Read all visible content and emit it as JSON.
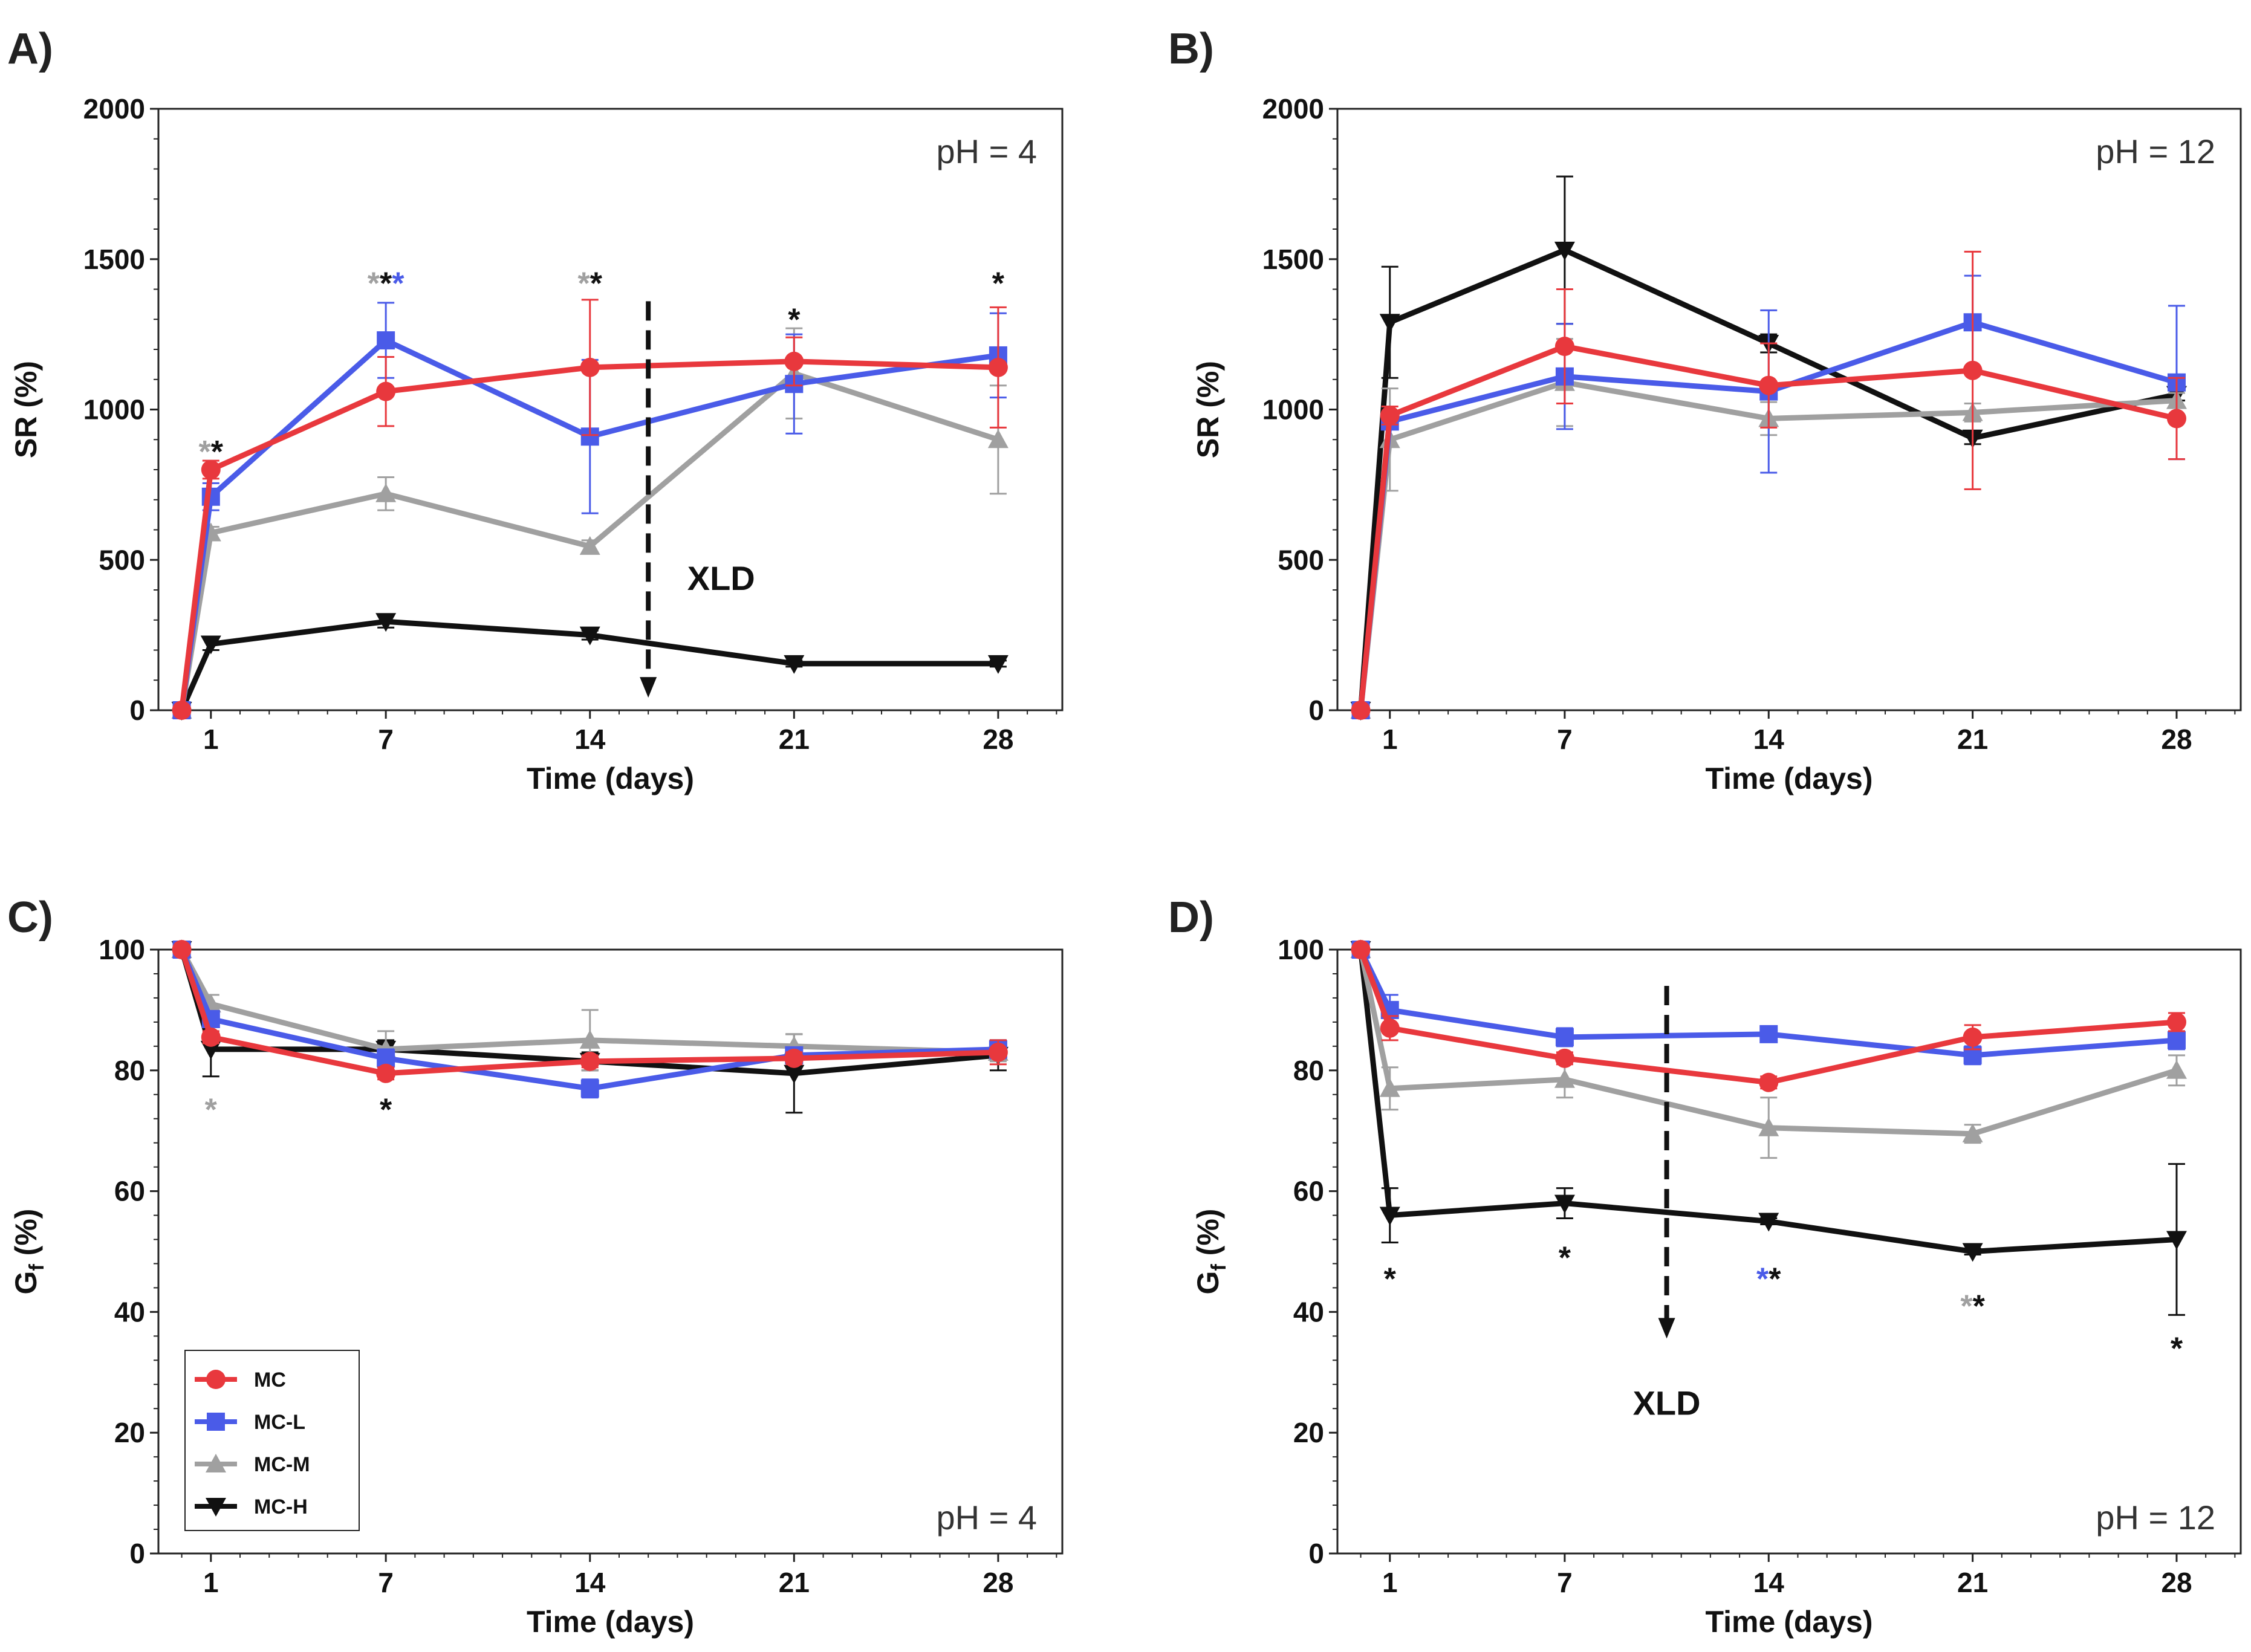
{
  "colors": {
    "MC": "#e8383d",
    "MC-L": "#4a5be8",
    "MC-M": "#a0a0a0",
    "MC-H": "#111111"
  },
  "chart_data": [
    {
      "id": "A",
      "panel": "A)",
      "type": "line",
      "condition": "pH = 4",
      "xlabel": "Time (days)",
      "ylabel": "SR (%)",
      "ylim": [
        0,
        2000
      ],
      "yticks": [
        0,
        500,
        1000,
        1500,
        2000
      ],
      "x": [
        0,
        1,
        7,
        14,
        21,
        28
      ],
      "xticks": [
        1,
        7,
        14,
        21,
        28
      ],
      "series": [
        {
          "name": "MC",
          "values": [
            0,
            800,
            1060,
            1140,
            1160,
            1140
          ],
          "errors": [
            0,
            30,
            115,
            225,
            80,
            200
          ]
        },
        {
          "name": "MC-L",
          "values": [
            0,
            710,
            1230,
            910,
            1085,
            1180
          ],
          "errors": [
            0,
            45,
            125,
            255,
            165,
            140
          ]
        },
        {
          "name": "MC-M",
          "values": [
            0,
            590,
            720,
            545,
            1120,
            900
          ],
          "errors": [
            0,
            20,
            55,
            20,
            150,
            180
          ]
        },
        {
          "name": "MC-H",
          "values": [
            0,
            220,
            295,
            250,
            155,
            155
          ],
          "errors": [
            0,
            20,
            20,
            15,
            10,
            10
          ]
        }
      ],
      "annotations": [
        {
          "x": 1,
          "y": 860,
          "marks": [
            {
              "text": "*",
              "color": "MC-M"
            },
            {
              "text": "*",
              "color": "MC-H"
            }
          ]
        },
        {
          "x": 7,
          "y": 1420,
          "marks": [
            {
              "text": "*",
              "color": "MC-M"
            },
            {
              "text": "*",
              "color": "MC-H"
            },
            {
              "text": "*",
              "color": "MC-L"
            }
          ]
        },
        {
          "x": 14,
          "y": 1420,
          "marks": [
            {
              "text": "*",
              "color": "MC-M"
            },
            {
              "text": "*",
              "color": "MC-H"
            }
          ]
        },
        {
          "x": 21,
          "y": 1300,
          "marks": [
            {
              "text": "*",
              "color": "MC-H"
            }
          ]
        },
        {
          "x": 28,
          "y": 1420,
          "marks": [
            {
              "text": "*",
              "color": "MC-H"
            }
          ]
        }
      ],
      "crosslink": {
        "label": "XLD",
        "x": 16,
        "y_top": 1360,
        "y_bottom": 50,
        "label_x": 18.5,
        "label_y": 440
      }
    },
    {
      "id": "B",
      "panel": "B)",
      "type": "line",
      "condition": "pH = 12",
      "xlabel": "Time (days)",
      "ylabel": "SR (%)",
      "ylim": [
        0,
        2000
      ],
      "yticks": [
        0,
        500,
        1000,
        1500,
        2000
      ],
      "x": [
        0,
        1,
        7,
        14,
        21,
        28
      ],
      "xticks": [
        1,
        7,
        14,
        21,
        28
      ],
      "series": [
        {
          "name": "MC",
          "values": [
            0,
            980,
            1210,
            1080,
            1130,
            970
          ],
          "errors": [
            0,
            30,
            190,
            140,
            395,
            135
          ]
        },
        {
          "name": "MC-L",
          "values": [
            0,
            960,
            1110,
            1060,
            1290,
            1090
          ],
          "errors": [
            0,
            25,
            175,
            270,
            155,
            255
          ]
        },
        {
          "name": "MC-M",
          "values": [
            0,
            900,
            1090,
            970,
            990,
            1030
          ],
          "errors": [
            0,
            170,
            145,
            55,
            30,
            25
          ]
        },
        {
          "name": "MC-H",
          "values": [
            0,
            1290,
            1530,
            1220,
            905,
            1050
          ],
          "errors": [
            0,
            185,
            245,
            30,
            20,
            20
          ]
        }
      ],
      "annotations": [],
      "crosslink": null
    },
    {
      "id": "C",
      "panel": "C)",
      "type": "line",
      "condition": "pH = 4",
      "xlabel": "Time (days)",
      "ylabel": "Gf (%)",
      "ylim": [
        0,
        100
      ],
      "yticks": [
        0,
        20,
        40,
        60,
        80,
        100
      ],
      "x": [
        0,
        1,
        7,
        14,
        21,
        28
      ],
      "xticks": [
        1,
        7,
        14,
        21,
        28
      ],
      "series": [
        {
          "name": "MC",
          "values": [
            100,
            85.5,
            79.5,
            81.5,
            82.0,
            83.0
          ],
          "errors": [
            0,
            1.0,
            1.0,
            1.0,
            1.0,
            2.0
          ]
        },
        {
          "name": "MC-L",
          "values": [
            100,
            88.5,
            82.0,
            77.0,
            82.5,
            83.5
          ],
          "errors": [
            0,
            1.0,
            1.5,
            1.5,
            1.0,
            1.5
          ]
        },
        {
          "name": "MC-M",
          "values": [
            100,
            91.0,
            83.5,
            85.0,
            84.0,
            83.0
          ],
          "errors": [
            0,
            1.5,
            3.0,
            5.0,
            2.0,
            1.5
          ]
        },
        {
          "name": "MC-H",
          "values": [
            100,
            83.5,
            83.5,
            81.5,
            79.5,
            82.5
          ],
          "errors": [
            0,
            4.5,
            1.5,
            1.5,
            6.5,
            2.5
          ]
        }
      ],
      "annotations": [
        {
          "x": 1,
          "y": 73.5,
          "marks": [
            {
              "text": "*",
              "color": "MC-M"
            }
          ]
        },
        {
          "x": 7,
          "y": 73.5,
          "marks": [
            {
              "text": "*",
              "color": "MC-H"
            }
          ]
        }
      ],
      "crosslink": null,
      "legend": {
        "position": "bottom-left",
        "entries": [
          "MC",
          "MC-L",
          "MC-M",
          "MC-H"
        ]
      }
    },
    {
      "id": "D",
      "panel": "D)",
      "type": "line",
      "condition": "pH = 12",
      "xlabel": "Time (days)",
      "ylabel": "Gf (%)",
      "ylim": [
        0,
        100
      ],
      "yticks": [
        0,
        20,
        40,
        60,
        80,
        100
      ],
      "x": [
        0,
        1,
        7,
        14,
        21,
        28
      ],
      "xticks": [
        1,
        7,
        14,
        21,
        28
      ],
      "series": [
        {
          "name": "MC",
          "values": [
            100,
            87.0,
            82.0,
            78.0,
            85.5,
            88.0
          ],
          "errors": [
            0,
            2.0,
            1.0,
            1.0,
            2.0,
            1.5
          ]
        },
        {
          "name": "MC-L",
          "values": [
            100,
            90.0,
            85.5,
            86.0,
            82.5,
            85.0
          ],
          "errors": [
            0,
            2.5,
            1.5,
            1.0,
            1.5,
            1.5
          ]
        },
        {
          "name": "MC-M",
          "values": [
            100,
            77.0,
            78.5,
            70.5,
            69.5,
            80.0
          ],
          "errors": [
            0,
            3.5,
            3.0,
            5.0,
            1.5,
            2.5
          ]
        },
        {
          "name": "MC-H",
          "values": [
            100,
            56.0,
            58.0,
            55.0,
            50.0,
            52.0
          ],
          "errors": [
            0,
            4.5,
            2.5,
            0.5,
            0.5,
            12.5
          ]
        }
      ],
      "annotations": [
        {
          "x": 1,
          "y": 45.5,
          "marks": [
            {
              "text": "*",
              "color": "MC-H"
            }
          ]
        },
        {
          "x": 7,
          "y": 49.0,
          "marks": [
            {
              "text": "*",
              "color": "MC-H"
            }
          ]
        },
        {
          "x": 14,
          "y": 45.5,
          "marks": [
            {
              "text": "*",
              "color": "MC-L"
            },
            {
              "text": "*",
              "color": "MC-H"
            }
          ]
        },
        {
          "x": 21,
          "y": 41.0,
          "marks": [
            {
              "text": "*",
              "color": "MC-M"
            },
            {
              "text": "*",
              "color": "MC-H"
            }
          ]
        },
        {
          "x": 28,
          "y": 34.0,
          "marks": [
            {
              "text": "*",
              "color": "MC-H"
            }
          ]
        }
      ],
      "crosslink": {
        "label": "XLD",
        "x": 10.5,
        "y_top": 94,
        "y_bottom": 36,
        "label_x": 10.5,
        "label_y": 25
      }
    }
  ]
}
